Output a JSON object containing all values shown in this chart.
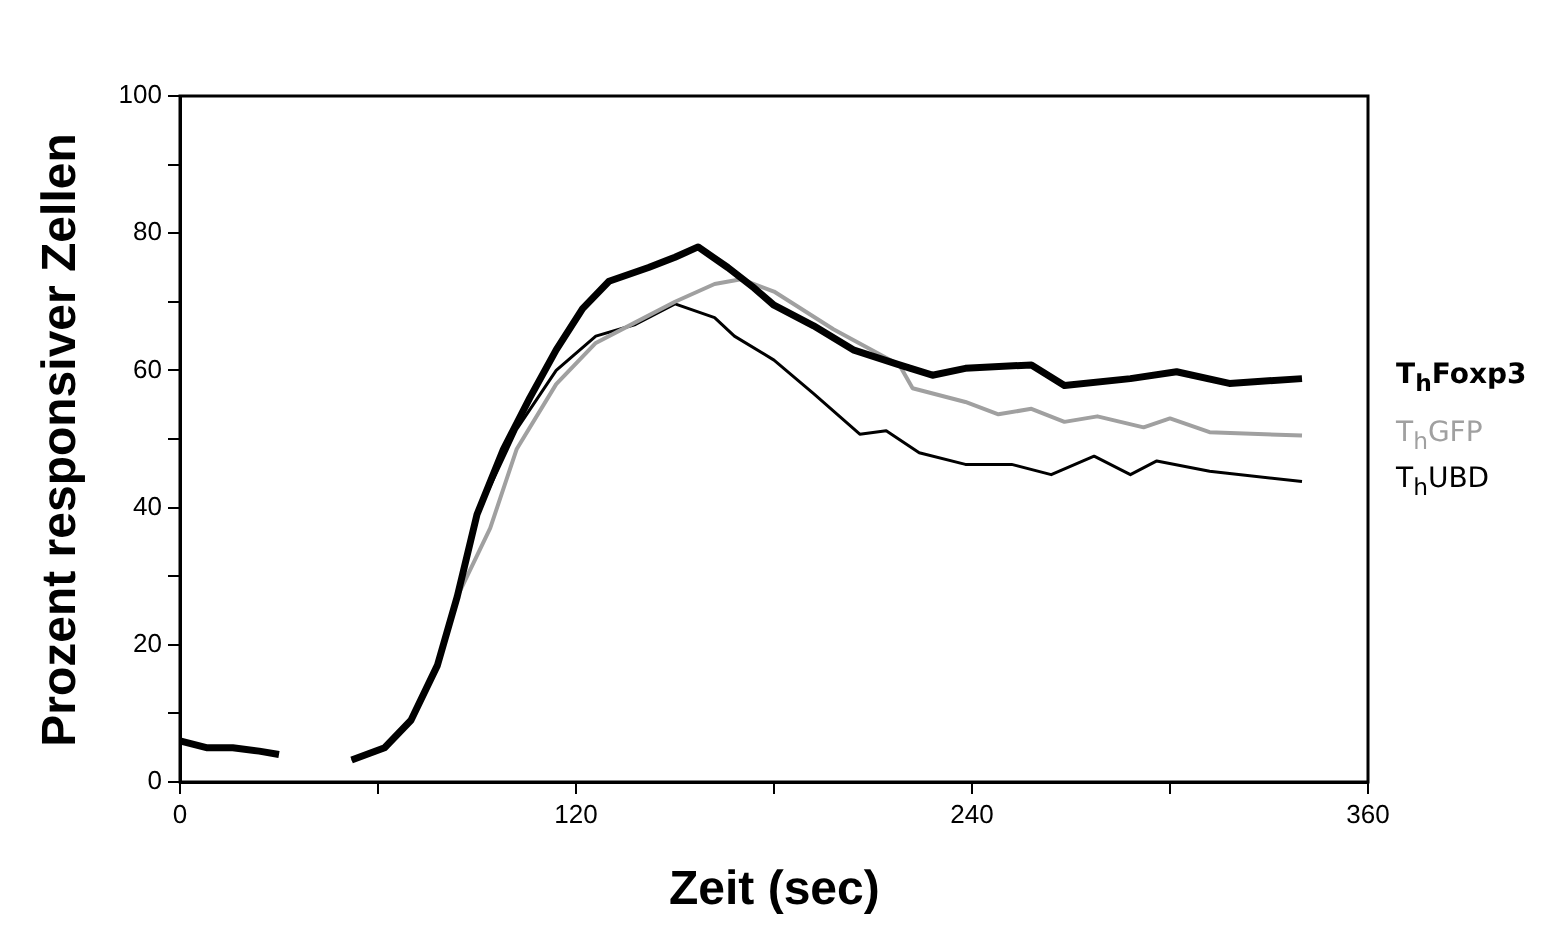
{
  "chart_data": {
    "type": "line",
    "xlabel": "Zeit (sec)",
    "ylabel": "Prozent responsiver Zellen",
    "xlim": [
      0,
      360
    ],
    "ylim": [
      0,
      100
    ],
    "xticks": [
      0,
      {
        "value": 60,
        "label": null
      },
      120,
      {
        "value": 180,
        "label": null
      },
      240,
      {
        "value": 300,
        "label": null
      },
      360
    ],
    "yticks": [
      0,
      {
        "value": 10,
        "label": null
      },
      20,
      {
        "value": 30,
        "label": null
      },
      40,
      {
        "value": 50,
        "label": null
      },
      60,
      {
        "value": 70,
        "label": null
      },
      80,
      {
        "value": 90,
        "label": null
      },
      100
    ],
    "grid": false,
    "legend": "right",
    "marker": "none",
    "line_style": "solid",
    "series": [
      {
        "name": "T$_{h}$Foxp3",
        "color": "#000000",
        "x": [
          0,
          8,
          16,
          24,
          30,
          40,
          52,
          62,
          70,
          78,
          84,
          90,
          98,
          106,
          114,
          122,
          130,
          142,
          150,
          157,
          166,
          174,
          180,
          192,
          204,
          218,
          228,
          238,
          258,
          268,
          288,
          302,
          318,
          340
        ],
        "values": [
          6,
          5,
          5,
          4.5,
          4,
          null,
          3.2,
          5,
          9,
          17,
          27,
          39,
          48.5,
          56,
          63,
          69,
          73,
          75,
          76.5,
          78,
          75,
          72,
          69.5,
          66.5,
          63,
          60.8,
          59.3,
          60.3,
          60.8,
          57.8,
          58.8,
          59.8,
          58.1,
          58.8
        ]
      },
      {
        "name": "T$_{h}$GFP",
        "color": "#a0a0a0",
        "x": [
          52,
          62,
          70,
          78,
          84,
          94,
          102,
          114,
          126,
          138,
          150,
          162,
          170,
          180,
          198,
          218,
          222,
          238,
          248,
          258,
          268,
          278,
          292,
          300,
          312,
          340
        ],
        "values": [
          3.2,
          5,
          9,
          17,
          27,
          37,
          48.5,
          58,
          64,
          67,
          70,
          72.6,
          73.3,
          71.5,
          66,
          60.8,
          57.4,
          55.4,
          53.6,
          54.4,
          52.5,
          53.3,
          51.7,
          53,
          51,
          50.5
        ]
      },
      {
        "name": "T$_{h}$UBD",
        "color": "#000000",
        "x": [
          52,
          62,
          70,
          78,
          84,
          90,
          102,
          114,
          126,
          138,
          150,
          162,
          168,
          180,
          192,
          206,
          214,
          224,
          238,
          252,
          264,
          277,
          288,
          296,
          312,
          340
        ],
        "values": [
          3.2,
          5,
          9,
          17,
          27,
          39,
          51.4,
          60,
          65,
          66.7,
          69.7,
          67.7,
          65,
          61.5,
          56.6,
          50.7,
          51.2,
          48,
          46.3,
          46.3,
          44.8,
          47.5,
          44.8,
          46.8,
          45.3,
          43.8
        ]
      }
    ]
  }
}
